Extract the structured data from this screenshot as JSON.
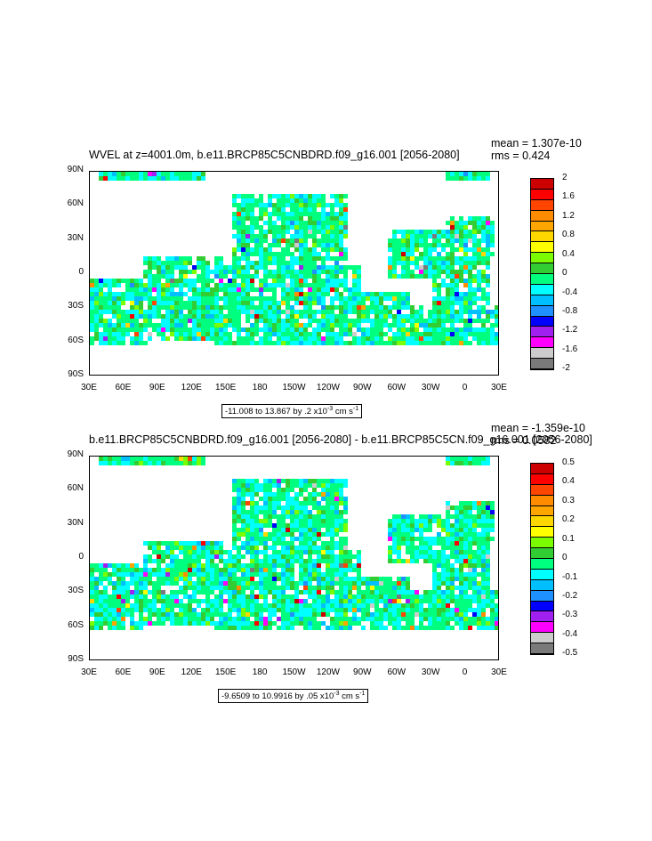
{
  "colors": {
    "scale": [
      "#7a7a7a",
      "#cccccc",
      "#ff00ff",
      "#a020f0",
      "#0000ff",
      "#1e90ff",
      "#00bfff",
      "#00ffff",
      "#00ff7f",
      "#32cd32",
      "#7cfc00",
      "#ffff00",
      "#ffd700",
      "#ffa500",
      "#ff8c00",
      "#ff4500",
      "#ff0000",
      "#cc0000"
    ],
    "land": "#ffffff",
    "ocean_base": "#2aff9a"
  },
  "panels": [
    {
      "title": "WVEL at z=4001.0m, b.e11.BRCP85C5CNBDRD.f09_g16.001 [2056-2080]",
      "mean": "mean = 1.307e-10",
      "rms": "rms = 0.424",
      "range_text": "-11.008 to 13.867 by .2 x10",
      "range_exp": "-3",
      "range_units": " cm s",
      "range_units_exp": "-1",
      "colorbar_labels": [
        "2",
        "1.6",
        "1.2",
        "0.8",
        "0.4",
        "0",
        "-0.4",
        "-0.8",
        "-1.2",
        "-1.6",
        "-2"
      ]
    },
    {
      "title": "b.e11.BRCP85C5CNBDRD.f09_g16.001 [2056-2080] - b.e11.BRCP85C5CN.f09_g16.001 [2056-2080]",
      "mean": "mean = -1.359e-10",
      "rms": "rms = 0.0582",
      "range_text": "-9.6509 to 10.9916 by .05 x10",
      "range_exp": "-3",
      "range_units": " cm s",
      "range_units_exp": "-1",
      "colorbar_labels": [
        "0.5",
        "0.4",
        "0.3",
        "0.2",
        "0.1",
        "0",
        "-0.1",
        "-0.2",
        "-0.3",
        "-0.4",
        "-0.5"
      ]
    }
  ],
  "map": {
    "lat_labels": [
      "90N",
      "60N",
      "30N",
      "0",
      "30S",
      "60S",
      "90S"
    ],
    "lon_labels": [
      "30E",
      "60E",
      "90E",
      "120E",
      "150E",
      "180",
      "150W",
      "120W",
      "90W",
      "60W",
      "30W",
      "0",
      "30E"
    ]
  }
}
